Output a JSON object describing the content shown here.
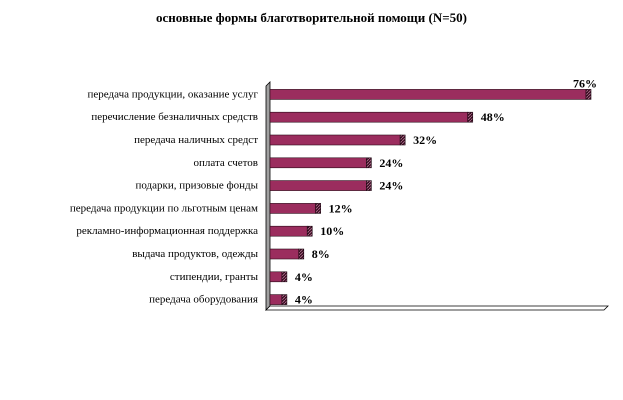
{
  "chart_data": {
    "type": "bar",
    "orientation": "horizontal",
    "title": "основные формы благотворительной помощи (N=50)",
    "categories": [
      "передача продукции, оказание услуг",
      "перечисление безналичных средств",
      "передача наличных средст",
      "оплата счетов",
      "подарки, призовые фонды",
      "передача продукции по льготным ценам",
      "рекламно-информационная поддержка",
      "выдача продуктов, одежды",
      "стипендии, гранты",
      "передача оборудования"
    ],
    "values": [
      76,
      48,
      32,
      24,
      24,
      12,
      10,
      8,
      4,
      4
    ],
    "value_labels": [
      "76%",
      "48%",
      "32%",
      "24%",
      "24%",
      "12%",
      "10%",
      "8%",
      "4%",
      "4%"
    ],
    "xlim": [
      0,
      80
    ],
    "grid": false,
    "legend": "none",
    "colors": {
      "bar": "#9b2d5e",
      "bar_end": "#3a0f22",
      "axis": "#000000"
    }
  }
}
